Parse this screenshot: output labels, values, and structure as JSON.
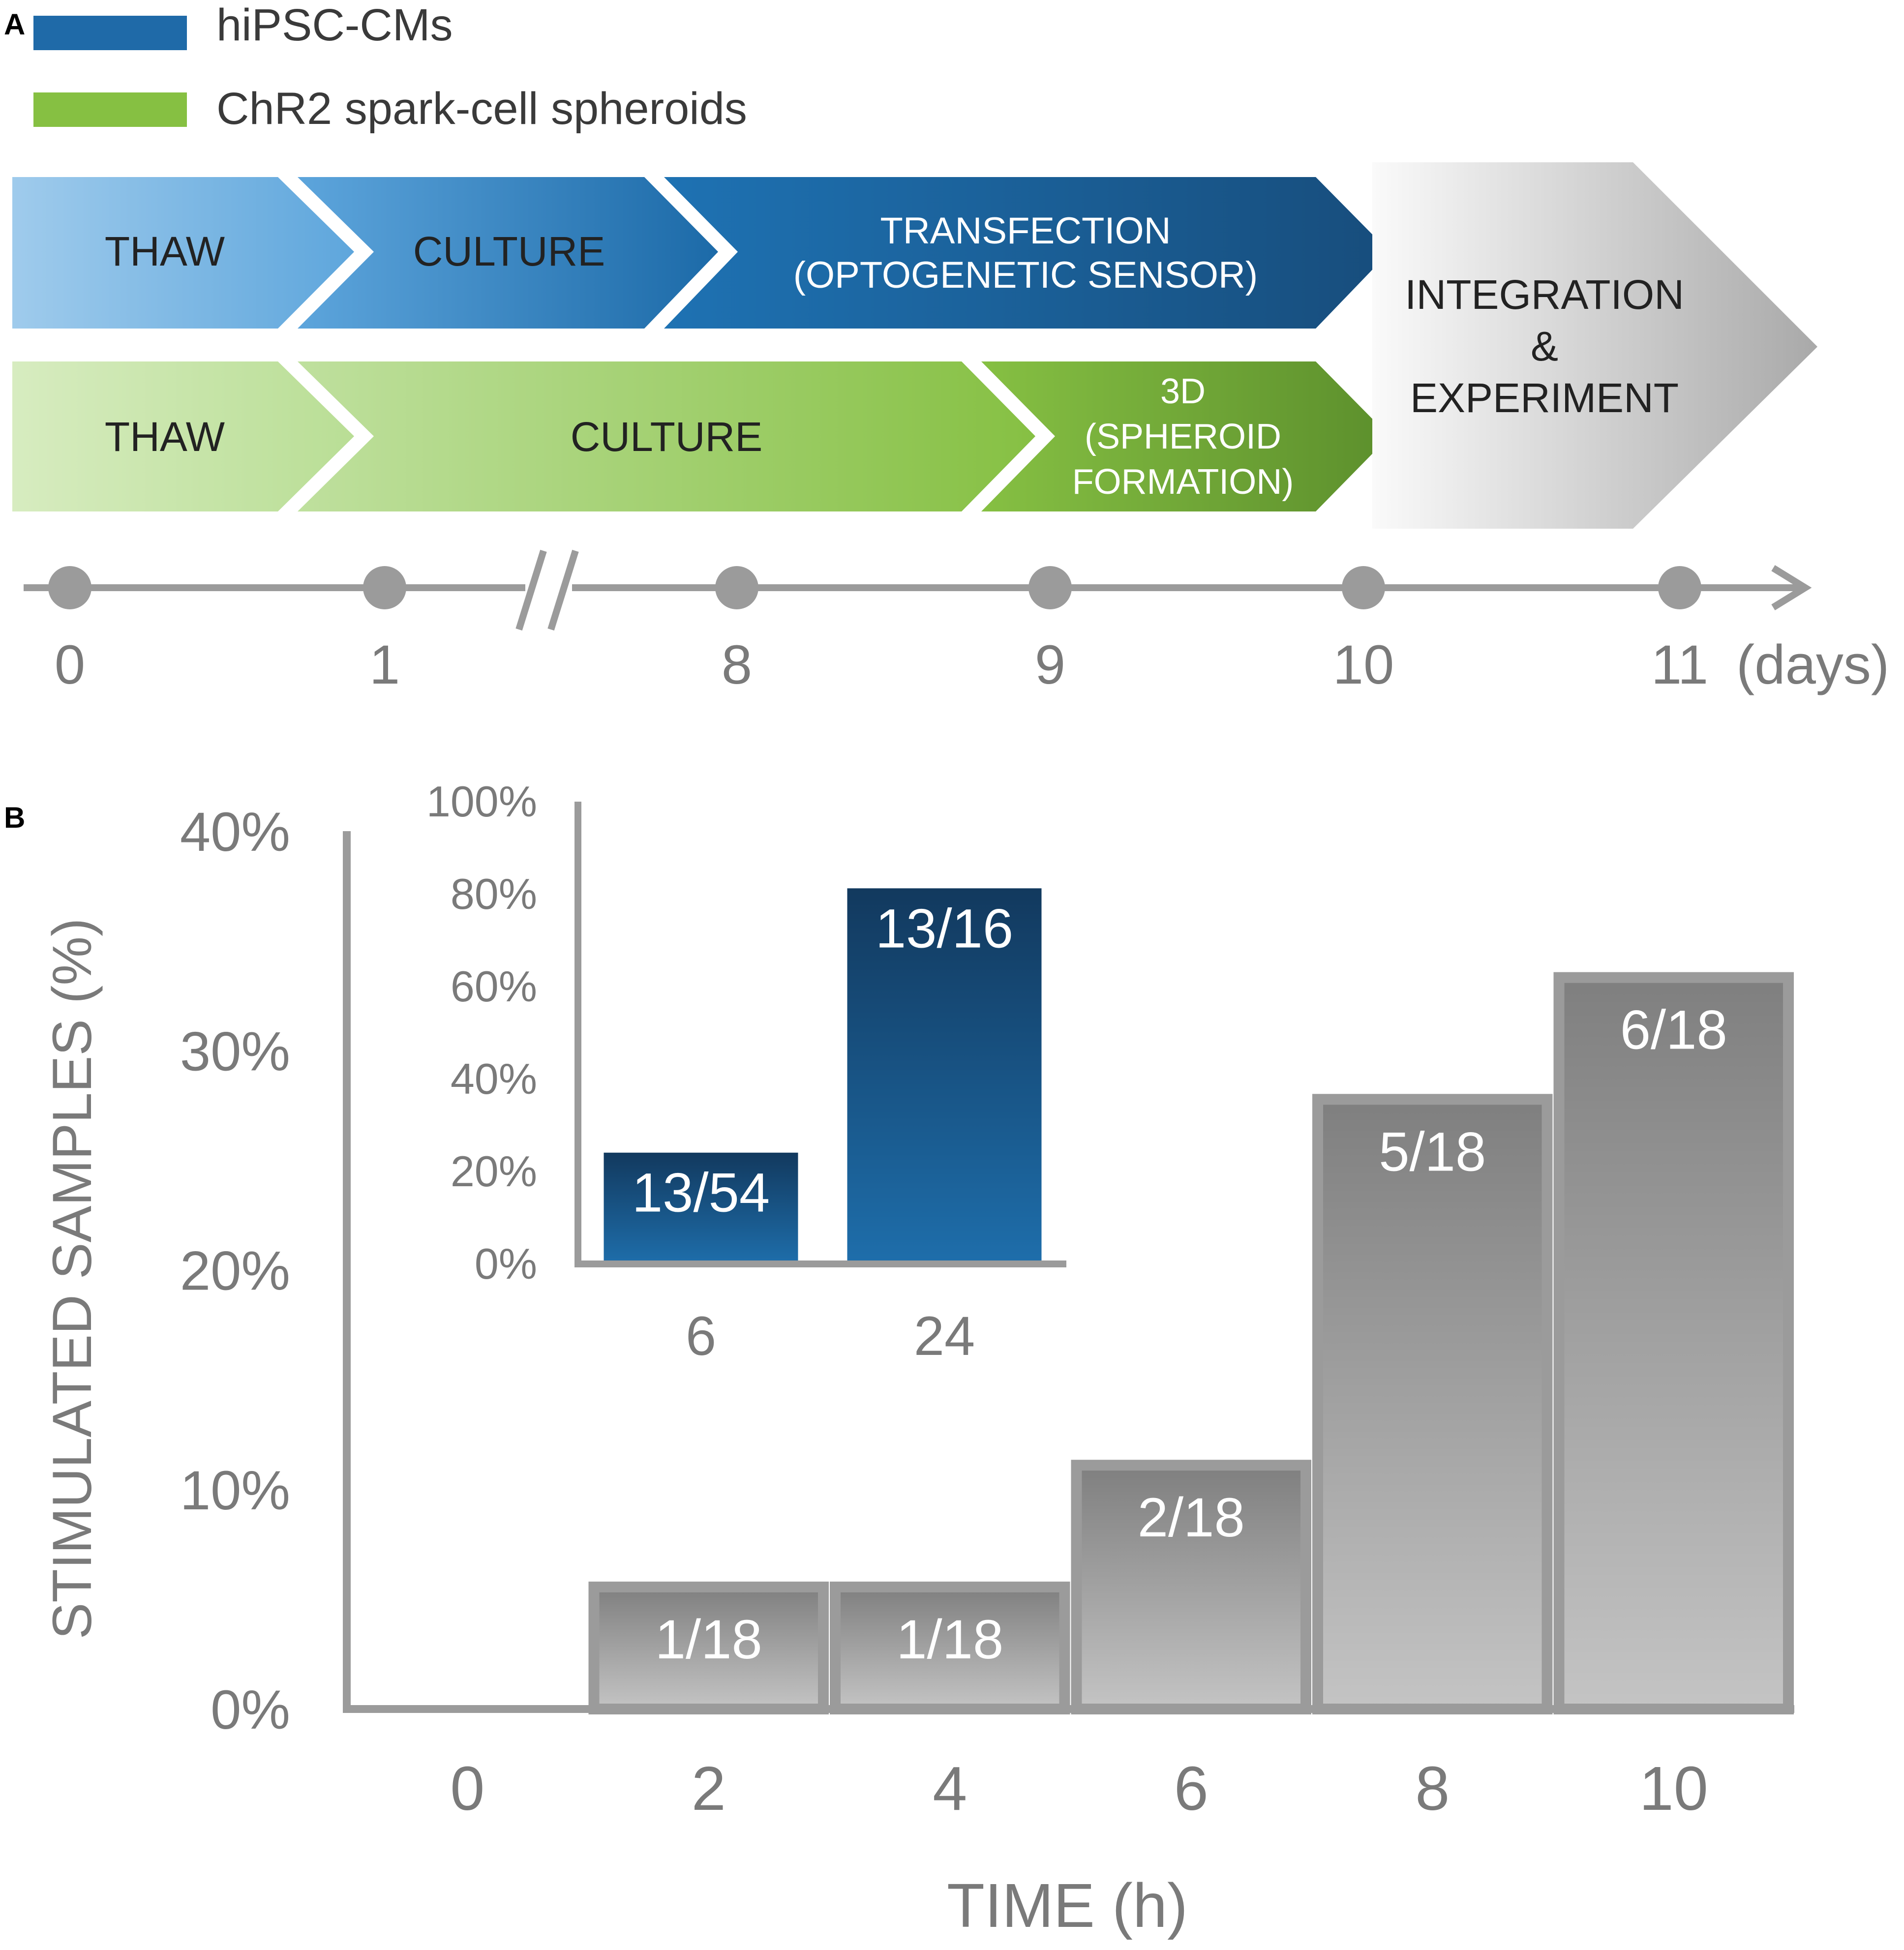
{
  "panel_a": {
    "label": "A",
    "legend": [
      {
        "name": "hiPSC-CMs",
        "color": "#1f6aa8"
      },
      {
        "name": "ChR2 spark-cell spheroids",
        "color": "#86c042"
      }
    ],
    "blue_row": [
      {
        "lines": [
          "THAW"
        ]
      },
      {
        "lines": [
          "CULTURE"
        ]
      },
      {
        "lines": [
          "TRANSFECTION",
          "(OPTOGENETIC SENSOR)"
        ]
      }
    ],
    "green_row": [
      {
        "lines": [
          "THAW"
        ]
      },
      {
        "lines": [
          "CULTURE"
        ]
      },
      {
        "lines": [
          "3D",
          "(SPHEROID",
          "FORMATION)"
        ]
      }
    ],
    "final_step": {
      "lines": [
        "INTEGRATION",
        "&",
        "EXPERIMENT"
      ]
    },
    "timeline": {
      "ticks": [
        "0",
        "1",
        "8",
        "9",
        "10",
        "11"
      ],
      "unit": "(days)",
      "axis_break_after": "1"
    }
  },
  "chart_data": [
    {
      "panel": "B",
      "type": "bar",
      "xlabel": "TIME (h)",
      "ylabel": "STIMULATED SAMPLES (%)",
      "ylim": [
        0,
        40
      ],
      "yticks": [
        "0%",
        "10%",
        "20%",
        "30%",
        "40%"
      ],
      "categories": [
        "0",
        "2",
        "4",
        "6",
        "8",
        "10"
      ],
      "values": [
        0,
        5.56,
        5.56,
        11.11,
        27.78,
        33.33
      ],
      "data_labels": [
        "",
        "1/18",
        "1/18",
        "2/18",
        "5/18",
        "6/18"
      ],
      "colors": {
        "bar_top": "#7f7f7f",
        "bar_bottom": "#c4c4c4",
        "axis": "#9b9b9b",
        "text": "#7a7a7a"
      }
    },
    {
      "panel": "B-inset",
      "type": "bar",
      "ylim": [
        0,
        100
      ],
      "yticks": [
        "0%",
        "20%",
        "40%",
        "60%",
        "80%",
        "100%"
      ],
      "categories": [
        "6",
        "24"
      ],
      "values": [
        24.07,
        81.25
      ],
      "data_labels": [
        "13/54",
        "13/16"
      ],
      "colors": {
        "bar_top": "#12395e",
        "bar_bottom": "#1e6eab"
      }
    }
  ],
  "panel_b_label": "B"
}
